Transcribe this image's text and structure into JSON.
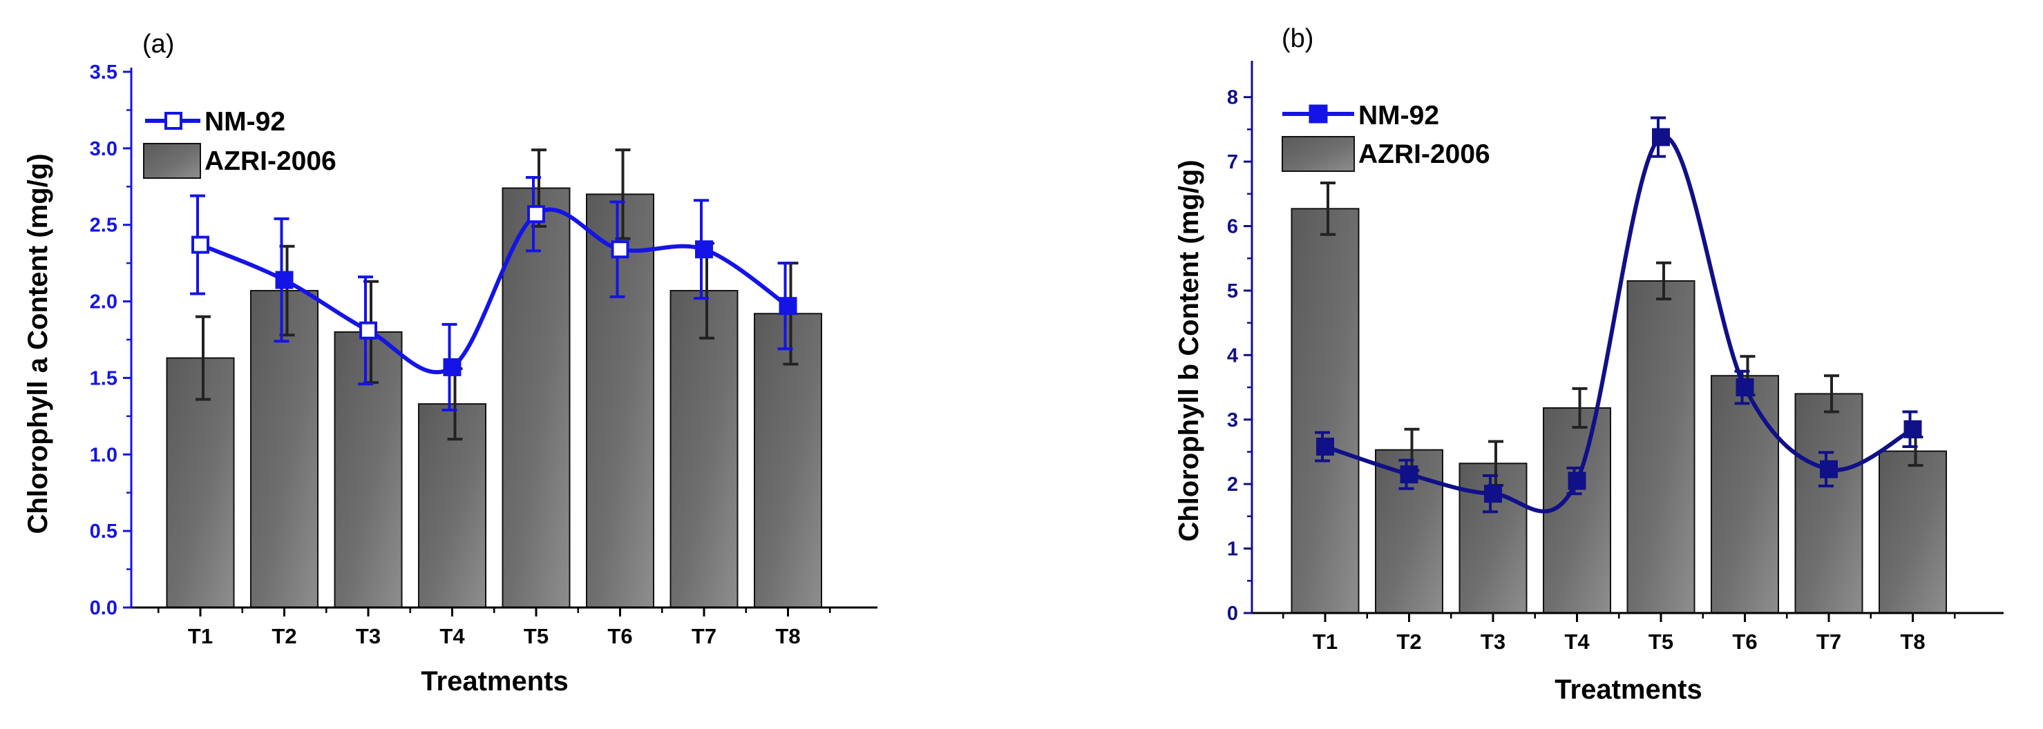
{
  "colors": {
    "line": "#1414e6",
    "line_dark": "#101088",
    "bar_dark": "#5a5a5a",
    "bar_light": "#8e8e8e",
    "error_bar": "#222222"
  },
  "chart_data": [
    {
      "type": "bar",
      "panel_label": "(a)",
      "xlabel": "Treatments",
      "ylabel": "Chlorophyll a Content (mg/g)",
      "categories": [
        "T1",
        "T2",
        "T3",
        "T4",
        "T5",
        "T6",
        "T7",
        "T8"
      ],
      "ylim": [
        0,
        3.5
      ],
      "yticks": [
        "0.0",
        "0.5",
        "1.0",
        "1.5",
        "2.0",
        "2.5",
        "3.0",
        "3.5"
      ],
      "y_axis_color": "#1414e6",
      "legend_position": "top-left",
      "bar_series": {
        "name": "AZRI-2006",
        "values": [
          1.63,
          2.07,
          1.8,
          1.33,
          2.74,
          2.7,
          2.07,
          1.92
        ],
        "errors": [
          0.27,
          0.29,
          0.33,
          0.23,
          0.25,
          0.29,
          0.31,
          0.33
        ]
      },
      "line_series": {
        "name": "NM-92",
        "values": [
          2.37,
          2.14,
          1.81,
          1.57,
          2.57,
          2.34,
          2.34,
          1.97
        ],
        "errors": [
          0.32,
          0.4,
          0.35,
          0.28,
          0.24,
          0.31,
          0.32,
          0.28
        ],
        "open_markers": [
          true,
          false,
          true,
          false,
          true,
          true,
          false,
          false
        ]
      }
    },
    {
      "type": "bar",
      "panel_label": "(b)",
      "xlabel": "Treatments",
      "ylabel": "Chlorophyll b Content (mg/g)",
      "categories": [
        "T1",
        "T2",
        "T3",
        "T4",
        "T5",
        "T6",
        "T7",
        "T8"
      ],
      "ylim": [
        0,
        8.5
      ],
      "yticks": [
        "0",
        "1",
        "2",
        "3",
        "4",
        "5",
        "6",
        "7",
        "8"
      ],
      "y_axis_color": "#101088",
      "legend_position": "top-left",
      "bar_series": {
        "name": "AZRI-2006",
        "values": [
          6.27,
          2.53,
          2.32,
          3.18,
          5.15,
          3.68,
          3.4,
          2.51
        ],
        "errors": [
          0.4,
          0.32,
          0.34,
          0.3,
          0.28,
          0.3,
          0.28,
          0.22
        ]
      },
      "line_series": {
        "name": "NM-92",
        "values": [
          2.58,
          2.15,
          1.85,
          2.05,
          7.38,
          3.5,
          2.23,
          2.85
        ],
        "errors": [
          0.22,
          0.22,
          0.28,
          0.2,
          0.3,
          0.25,
          0.26,
          0.27
        ],
        "open_markers": [
          false,
          false,
          false,
          false,
          false,
          false,
          false,
          false
        ]
      }
    }
  ]
}
